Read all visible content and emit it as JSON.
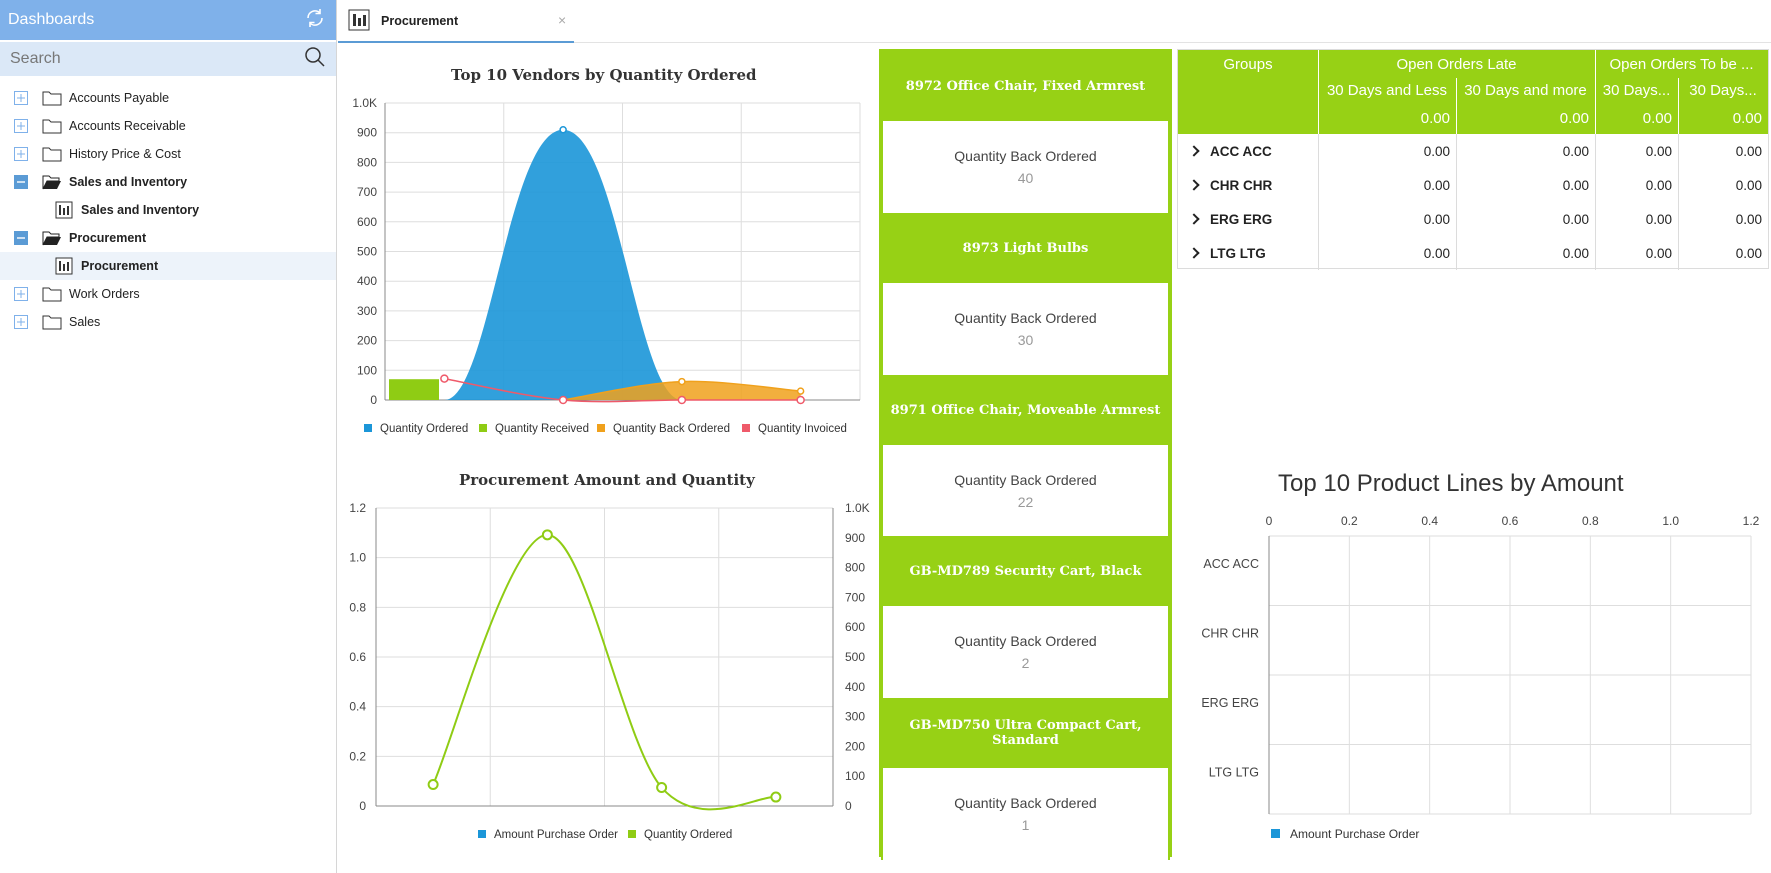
{
  "sidebar": {
    "title": "Dashboards",
    "search_placeholder": "Search",
    "items": [
      {
        "label": "Accounts Payable"
      },
      {
        "label": "Accounts Receivable"
      },
      {
        "label": "History Price & Cost"
      },
      {
        "label": "Sales and Inventory"
      },
      {
        "label": "Sales and Inventory"
      },
      {
        "label": "Procurement"
      },
      {
        "label": "Procurement"
      },
      {
        "label": "Work Orders"
      },
      {
        "label": "Sales"
      }
    ]
  },
  "tab": {
    "label": "Procurement",
    "close": "×"
  },
  "charts": {
    "vendors": {
      "title": "Top 10 Vendors by Quantity Ordered",
      "yticks": [
        "1.0K",
        "900",
        "800",
        "700",
        "600",
        "500",
        "400",
        "300",
        "200",
        "100",
        "0"
      ],
      "legend": [
        "Quantity Ordered",
        "Quantity Received",
        "Quantity Back Ordered",
        "Quantity Invoiced"
      ]
    },
    "procurement": {
      "title": "Procurement Amount and Quantity",
      "yticks_left": [
        "1.2",
        "1.0",
        "0.8",
        "0.6",
        "0.4",
        "0.2",
        "0"
      ],
      "yticks_right": [
        "1.0K",
        "900",
        "800",
        "700",
        "600",
        "500",
        "400",
        "300",
        "200",
        "100",
        "0"
      ],
      "legend": [
        "Amount Purchase Order",
        "Quantity Ordered"
      ]
    },
    "productlines": {
      "title": "Top 10 Product Lines by Amount",
      "xticks": [
        "0",
        "0.2",
        "0.4",
        "0.6",
        "0.8",
        "1.0",
        "1.2"
      ],
      "categories": [
        "ACC ACC",
        "CHR CHR",
        "ERG ERG",
        "LTG LTG"
      ],
      "legend": [
        "Amount Purchase Order"
      ]
    }
  },
  "chart_data": [
    {
      "type": "area",
      "title": "Top 10 Vendors by Quantity Ordered",
      "ylim": [
        0,
        1000
      ],
      "series": [
        {
          "name": "Quantity Ordered",
          "values": [
            0,
            910,
            0,
            0
          ]
        },
        {
          "name": "Quantity Received",
          "values": [
            70,
            0,
            0,
            0
          ]
        },
        {
          "name": "Quantity Back Ordered",
          "values": [
            0,
            0,
            62,
            30
          ]
        },
        {
          "name": "Quantity Invoiced",
          "values": [
            72,
            0,
            0,
            0
          ]
        }
      ],
      "legend": "bottom",
      "grid": true,
      "colors": {
        "Quantity Ordered": "#1b96d8",
        "Quantity Received": "#8fcc14",
        "Quantity Back Ordered": "#f0a11c",
        "Quantity Invoiced": "#ef5a6a"
      }
    },
    {
      "type": "line",
      "title": "Procurement Amount and Quantity",
      "ylim_left": [
        0,
        1.2
      ],
      "ylim_right": [
        0,
        1000
      ],
      "series": [
        {
          "name": "Amount Purchase Order",
          "values": [
            0,
            0,
            0,
            0
          ]
        },
        {
          "name": "Quantity Ordered",
          "values": [
            72,
            910,
            62,
            30
          ]
        }
      ],
      "legend": "bottom",
      "grid": true
    },
    {
      "type": "bar",
      "title": "Top 10 Product Lines by Amount",
      "categories": [
        "ACC ACC",
        "CHR CHR",
        "ERG ERG",
        "LTG LTG"
      ],
      "series": [
        {
          "name": "Amount Purchase Order",
          "values": [
            0,
            0,
            0,
            0
          ]
        }
      ],
      "xlim": [
        0,
        1.2
      ],
      "legend": "bottom",
      "grid": true
    }
  ],
  "cards": [
    {
      "title": "8972 Office Chair, Fixed Armrest",
      "label": "Quantity Back Ordered",
      "value": "40"
    },
    {
      "title": "8973 Light Bulbs",
      "label": "Quantity Back Ordered",
      "value": "30"
    },
    {
      "title": "8971 Office Chair, Moveable Armrest",
      "label": "Quantity Back Ordered",
      "value": "22"
    },
    {
      "title": "GB-MD789 Security Cart, Black",
      "label": "Quantity Back Ordered",
      "value": "2"
    },
    {
      "title": "GB-MD750 Ultra Compact Cart, Standard",
      "label": "Quantity Back Ordered",
      "value": "1"
    }
  ],
  "grid": {
    "groups_label": "Groups",
    "group1": "Open Orders Late",
    "group2": "Open Orders To be ...",
    "sub": [
      "30 Days and Less",
      "30 Days and more",
      "30 Days...",
      "30 Days..."
    ],
    "totals": [
      "0.00",
      "0.00",
      "0.00",
      "0.00"
    ],
    "rows": [
      {
        "name": "ACC ACC",
        "values": [
          "0.00",
          "0.00",
          "0.00",
          "0.00"
        ]
      },
      {
        "name": "CHR CHR",
        "values": [
          "0.00",
          "0.00",
          "0.00",
          "0.00"
        ]
      },
      {
        "name": "ERG ERG",
        "values": [
          "0.00",
          "0.00",
          "0.00",
          "0.00"
        ]
      },
      {
        "name": "LTG LTG",
        "values": [
          "0.00",
          "0.00",
          "0.00",
          "0.00"
        ]
      }
    ]
  },
  "colors": {
    "accent_green": "#97d115",
    "sidebar_header": "#7fb1ea",
    "search_bg": "#dbe8f7",
    "blue": "#1b96d8"
  }
}
